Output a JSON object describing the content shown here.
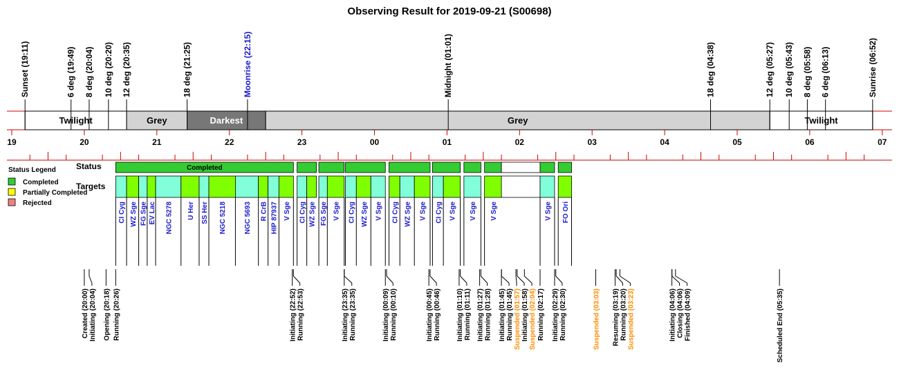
{
  "chart_data": {
    "type": "timeline",
    "title": "Observing Result for 2019-09-21 (S00698)",
    "x_unit": "hour of night (19 = 19:00 on 2019-09-21; 31 = 07:00 next day)",
    "x_range": [
      18.9,
      31.1
    ],
    "hour_ticks": [
      "19",
      "20",
      "21",
      "22",
      "23",
      "00",
      "01",
      "02",
      "03",
      "04",
      "05",
      "06",
      "07"
    ],
    "top_events": [
      {
        "t": 19.183,
        "label": "Sunset (19:11)",
        "color": "#000000"
      },
      {
        "t": 19.817,
        "label": "6 deg (19:49)",
        "color": "#000000"
      },
      {
        "t": 20.067,
        "label": "8 deg (20:04)",
        "color": "#000000"
      },
      {
        "t": 20.333,
        "label": "10 deg (20:20)",
        "color": "#000000"
      },
      {
        "t": 20.583,
        "label": "12 deg (20:35)",
        "color": "#000000"
      },
      {
        "t": 21.417,
        "label": "18 deg (21:25)",
        "color": "#000000"
      },
      {
        "t": 22.25,
        "label": "Moonrise (22:15)",
        "color": "#1a1acc"
      },
      {
        "t": 25.017,
        "label": "Midnight (01:01)",
        "color": "#000000"
      },
      {
        "t": 28.633,
        "label": "18 deg (04:38)",
        "color": "#000000"
      },
      {
        "t": 29.45,
        "label": "12 deg (05:27)",
        "color": "#000000"
      },
      {
        "t": 29.717,
        "label": "10 deg (05:43)",
        "color": "#000000"
      },
      {
        "t": 29.967,
        "label": "8 deg (05:58)",
        "color": "#000000"
      },
      {
        "t": 30.217,
        "label": "6 deg (06:13)",
        "color": "#000000"
      },
      {
        "t": 30.867,
        "label": "Sunrise (06:52)",
        "color": "#000000"
      }
    ],
    "sky_bands": [
      {
        "start": 19.183,
        "end": 20.583,
        "label": "Twilight",
        "fill": "#ffffff",
        "text_color": "#000000"
      },
      {
        "start": 20.583,
        "end": 21.417,
        "label": "Grey",
        "fill": "#d3d3d3",
        "text_color": "#000000"
      },
      {
        "start": 21.417,
        "end": 22.5,
        "label": "Darkest",
        "fill": "#777777",
        "text_color": "#ffffff"
      },
      {
        "start": 22.5,
        "end": 29.45,
        "label": "Grey",
        "fill": "#d3d3d3",
        "text_color": "#000000"
      },
      {
        "start": 29.45,
        "end": 30.867,
        "label": "Twilight",
        "fill": "#ffffff",
        "text_color": "#000000"
      }
    ],
    "status_row_label": "Status",
    "targets_row_label": "Targets",
    "status_segments": [
      {
        "start": 20.433,
        "end": 22.883,
        "status": "Completed",
        "label": "Completed"
      },
      {
        "start": 22.933,
        "end": 23.2,
        "status": "Completed",
        "label": ""
      },
      {
        "start": 23.233,
        "end": 23.583,
        "status": "Completed",
        "label": ""
      },
      {
        "start": 23.6,
        "end": 24.15,
        "status": "Completed",
        "label": ""
      },
      {
        "start": 24.2,
        "end": 24.767,
        "status": "Completed",
        "label": ""
      },
      {
        "start": 24.8,
        "end": 25.183,
        "status": "Completed",
        "label": ""
      },
      {
        "start": 25.233,
        "end": 25.467,
        "status": "Completed",
        "label": ""
      },
      {
        "start": 25.517,
        "end": 25.75,
        "status": "Completed",
        "label": ""
      },
      {
        "start": 25.75,
        "end": 26.283,
        "status": "None",
        "label": ""
      },
      {
        "start": 26.283,
        "end": 26.483,
        "status": "Completed",
        "label": ""
      },
      {
        "start": 26.533,
        "end": 26.717,
        "status": "Completed",
        "label": ""
      }
    ],
    "targets": [
      {
        "start": 20.433,
        "end": 20.583,
        "name": "CI Cyg",
        "fill": "#80ffd9"
      },
      {
        "start": 20.583,
        "end": 20.75,
        "name": "WZ Sge",
        "fill": "#80ff00"
      },
      {
        "start": 20.75,
        "end": 20.867,
        "name": "FG Sge",
        "fill": "#80ffd9"
      },
      {
        "start": 20.867,
        "end": 20.983,
        "name": "EV Lac",
        "fill": "#80ff00"
      },
      {
        "start": 20.983,
        "end": 21.333,
        "name": "NGC 5278",
        "fill": "#80ffd9"
      },
      {
        "start": 21.333,
        "end": 21.583,
        "name": "U Her",
        "fill": "#80ff00"
      },
      {
        "start": 21.583,
        "end": 21.717,
        "name": "SS Her",
        "fill": "#80ffd9"
      },
      {
        "start": 21.717,
        "end": 22.083,
        "name": "NGC 5218",
        "fill": "#80ff00"
      },
      {
        "start": 22.083,
        "end": 22.4,
        "name": "NGC 5693",
        "fill": "#80ffd9"
      },
      {
        "start": 22.4,
        "end": 22.533,
        "name": "R CrB",
        "fill": "#80ff00"
      },
      {
        "start": 22.533,
        "end": 22.683,
        "name": "HIP 87937",
        "fill": "#80ffd9"
      },
      {
        "start": 22.683,
        "end": 22.883,
        "name": "V Sge",
        "fill": "#80ff00"
      },
      {
        "start": 22.933,
        "end": 23.067,
        "name": "CI Cyg",
        "fill": "#80ffd9"
      },
      {
        "start": 23.067,
        "end": 23.2,
        "name": "WZ Sge",
        "fill": "#80ff00"
      },
      {
        "start": 23.233,
        "end": 23.35,
        "name": "FG Sge",
        "fill": "#80ffd9"
      },
      {
        "start": 23.35,
        "end": 23.583,
        "name": "V Sge",
        "fill": "#80ff00"
      },
      {
        "start": 23.6,
        "end": 23.75,
        "name": "CI Cyg",
        "fill": "#80ffd9"
      },
      {
        "start": 23.75,
        "end": 23.95,
        "name": "WZ Sge",
        "fill": "#80ff00"
      },
      {
        "start": 23.95,
        "end": 24.15,
        "name": "V Sge",
        "fill": "#80ffd9"
      },
      {
        "start": 24.2,
        "end": 24.35,
        "name": "CI Cyg",
        "fill": "#80ff00"
      },
      {
        "start": 24.35,
        "end": 24.55,
        "name": "WZ Sge",
        "fill": "#80ffd9"
      },
      {
        "start": 24.55,
        "end": 24.767,
        "name": "V Sge",
        "fill": "#80ff00"
      },
      {
        "start": 24.8,
        "end": 24.95,
        "name": "CI Cyg",
        "fill": "#80ffd9"
      },
      {
        "start": 24.95,
        "end": 25.183,
        "name": "V Sge",
        "fill": "#80ff00"
      },
      {
        "start": 25.233,
        "end": 25.467,
        "name": "V Sge",
        "fill": "#80ffd9"
      },
      {
        "start": 25.517,
        "end": 25.75,
        "name": "V Sge",
        "fill": "#80ff00"
      },
      {
        "start": 26.283,
        "end": 26.483,
        "name": "V Sge",
        "fill": "#80ffd9"
      },
      {
        "start": 26.533,
        "end": 26.717,
        "name": "FO Ori",
        "fill": "#80ff00"
      }
    ],
    "bottom_events": [
      {
        "t": 20.0,
        "label": "Created (20:00)",
        "color": "#000000"
      },
      {
        "t": 20.067,
        "label": "Initiating (20:04)",
        "color": "#000000"
      },
      {
        "t": 20.3,
        "label": "Opening (20:18)",
        "color": "#000000"
      },
      {
        "t": 20.433,
        "label": "Running (20:26)",
        "color": "#000000"
      },
      {
        "t": 22.867,
        "label": "Initiating (22:52)",
        "color": "#000000"
      },
      {
        "t": 22.883,
        "label": "Running (22:53)",
        "color": "#000000"
      },
      {
        "t": 23.583,
        "label": "Initiating (23:35)",
        "color": "#000000"
      },
      {
        "t": 23.584,
        "label": "Running (23:35)",
        "color": "#000000"
      },
      {
        "t": 24.15,
        "label": "Initiating (00:09)",
        "color": "#000000"
      },
      {
        "t": 24.167,
        "label": "Running (00:10)",
        "color": "#000000"
      },
      {
        "t": 24.75,
        "label": "Initiating (00:45)",
        "color": "#000000"
      },
      {
        "t": 24.767,
        "label": "Running (00:46)",
        "color": "#000000"
      },
      {
        "t": 25.167,
        "label": "Initiating (01:10)",
        "color": "#000000"
      },
      {
        "t": 25.183,
        "label": "Running (01:11)",
        "color": "#000000"
      },
      {
        "t": 25.45,
        "label": "Initiating (01:27)",
        "color": "#000000"
      },
      {
        "t": 25.467,
        "label": "Running (01:28)",
        "color": "#000000"
      },
      {
        "t": 25.75,
        "label": "Initiating (01:45)",
        "color": "#000000"
      },
      {
        "t": 25.751,
        "label": "Running (01:45)",
        "color": "#000000"
      },
      {
        "t": 25.95,
        "label": "Suspended (01:57)",
        "color": "#ff8c00"
      },
      {
        "t": 25.967,
        "label": "Initiating (01:58)",
        "color": "#000000"
      },
      {
        "t": 26.067,
        "label": "Suspended (02:04)",
        "color": "#ff8c00"
      },
      {
        "t": 26.283,
        "label": "Running (02:17)",
        "color": "#000000"
      },
      {
        "t": 26.483,
        "label": "Initiating (02:29)",
        "color": "#000000"
      },
      {
        "t": 26.5,
        "label": "Running (02:30)",
        "color": "#000000"
      },
      {
        "t": 27.05,
        "label": "Suspended (03:03)",
        "color": "#ff8c00"
      },
      {
        "t": 27.317,
        "label": "Resuming (03:19)",
        "color": "#000000"
      },
      {
        "t": 27.333,
        "label": "Running (03:20)",
        "color": "#000000"
      },
      {
        "t": 27.383,
        "label": "Suspended (03:23)",
        "color": "#ff8c00"
      },
      {
        "t": 28.1,
        "label": "Initiating (04:06)",
        "color": "#000000"
      },
      {
        "t": 28.101,
        "label": "Closing (04:06)",
        "color": "#000000"
      },
      {
        "t": 28.15,
        "label": "Finished (04:09)",
        "color": "#000000"
      },
      {
        "t": 29.583,
        "label": "Scheduled End (05:35)",
        "color": "#000000"
      }
    ],
    "legend": {
      "title": "Status Legend",
      "placement": "left",
      "items": [
        {
          "label": "Completed",
          "color": "#33cc33"
        },
        {
          "label": "Partially Completed",
          "color": "#ffff00"
        },
        {
          "label": "Rejected",
          "color": "#f08080"
        }
      ]
    },
    "colors": {
      "status_completed": "#33cc33",
      "axis_line": "#cc0000",
      "target_text": "#1a1acc",
      "suspended_text": "#ff8c00"
    }
  }
}
